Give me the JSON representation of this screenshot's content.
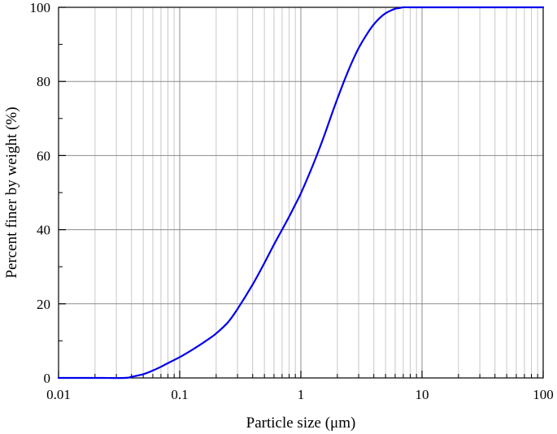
{
  "chart_data": {
    "type": "line",
    "xlabel": "Particle size (μm)",
    "ylabel": "Percent finer by weight (%)",
    "x_scale": "log",
    "xlim": [
      0.01,
      100
    ],
    "ylim": [
      0,
      100
    ],
    "x_ticks": [
      0.01,
      0.1,
      1,
      10,
      100
    ],
    "x_tick_labels": [
      "0.01",
      "0.1",
      "1",
      "10",
      "100"
    ],
    "y_ticks": [
      0,
      20,
      40,
      60,
      80,
      100
    ],
    "y_tick_labels": [
      "0",
      "20",
      "40",
      "60",
      "80",
      "100"
    ],
    "grid": true,
    "series_color": "#0000ee",
    "series": [
      {
        "x": [
          0.01,
          0.02,
          0.035,
          0.04,
          0.05,
          0.06,
          0.07,
          0.08,
          0.1,
          0.13,
          0.17,
          0.2,
          0.25,
          0.3,
          0.4,
          0.5,
          0.6,
          0.7,
          0.8,
          0.9,
          1.0,
          1.2,
          1.4,
          1.6,
          1.8,
          2.0,
          2.3,
          2.6,
          3.0,
          3.5,
          4.0,
          4.5,
          5.0,
          5.5,
          6.0,
          6.5,
          7.0,
          8.0,
          10,
          20,
          50,
          100
        ],
        "y": [
          0,
          0,
          0,
          0.3,
          1.0,
          2.0,
          3.0,
          4.0,
          5.6,
          7.8,
          10.3,
          12.0,
          15.0,
          18.6,
          25.2,
          31.0,
          36.0,
          40.0,
          43.5,
          46.8,
          49.8,
          55.8,
          61.3,
          66.4,
          71.2,
          75.3,
          80.5,
          84.7,
          89.0,
          92.7,
          95.4,
          97.2,
          98.4,
          99.1,
          99.6,
          99.8,
          100,
          100,
          100,
          100,
          100,
          100
        ]
      }
    ]
  }
}
